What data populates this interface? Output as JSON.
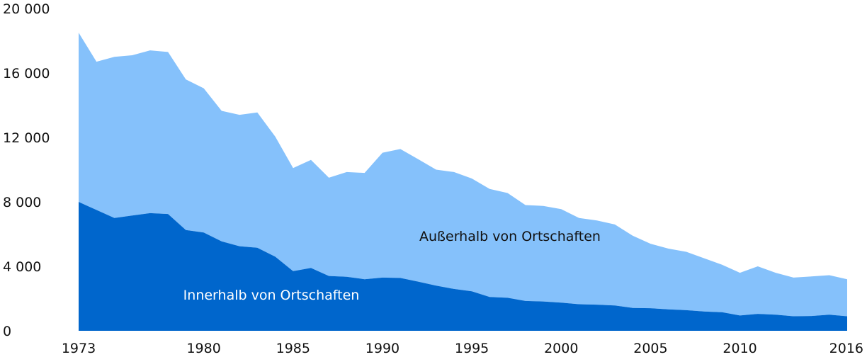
{
  "chart_data": {
    "type": "area",
    "stacked": true,
    "title": "",
    "xlabel": "",
    "ylabel": "",
    "xlim": [
      1973,
      2016
    ],
    "ylim": [
      0,
      20000
    ],
    "grid": false,
    "legend": "none",
    "y_ticks": [
      {
        "value": 0,
        "label": "0"
      },
      {
        "value": 4000,
        "label": "4 000"
      },
      {
        "value": 8000,
        "label": "8 000"
      },
      {
        "value": 12000,
        "label": "12 000"
      },
      {
        "value": 16000,
        "label": "16 000"
      },
      {
        "value": 20000,
        "label": "20 000"
      }
    ],
    "x_ticks": [
      {
        "value": 1973,
        "label": "1973"
      },
      {
        "value": 1980,
        "label": "1980"
      },
      {
        "value": 1985,
        "label": "1985"
      },
      {
        "value": 1990,
        "label": "1990"
      },
      {
        "value": 1995,
        "label": "1995"
      },
      {
        "value": 2000,
        "label": "2000"
      },
      {
        "value": 2005,
        "label": "2005"
      },
      {
        "value": 2010,
        "label": "2010"
      },
      {
        "value": 2016,
        "label": "2016"
      }
    ],
    "x": [
      1973,
      1974,
      1975,
      1976,
      1977,
      1978,
      1979,
      1980,
      1981,
      1982,
      1983,
      1984,
      1985,
      1986,
      1987,
      1988,
      1989,
      1990,
      1991,
      1992,
      1993,
      1994,
      1995,
      1996,
      1997,
      1998,
      1999,
      2000,
      2001,
      2002,
      2003,
      2004,
      2005,
      2006,
      2007,
      2008,
      2009,
      2010,
      2011,
      2012,
      2013,
      2014,
      2015,
      2016
    ],
    "series": [
      {
        "name": "Innerhalb von Ortschaften",
        "color": "#0066cc",
        "values": [
          8000,
          7500,
          7000,
          7150,
          7300,
          7250,
          6250,
          6100,
          5550,
          5250,
          5150,
          4600,
          3700,
          3900,
          3400,
          3350,
          3200,
          3300,
          3280,
          3050,
          2800,
          2600,
          2450,
          2100,
          2050,
          1850,
          1820,
          1750,
          1650,
          1620,
          1570,
          1420,
          1400,
          1330,
          1280,
          1200,
          1150,
          950,
          1050,
          1000,
          900,
          920,
          1000,
          900
        ]
      },
      {
        "name": "Außerhalb von Ortschaften",
        "color": "#85c1fb",
        "values": [
          10500,
          9200,
          10000,
          9950,
          10100,
          10050,
          9350,
          8950,
          8100,
          8150,
          8400,
          7450,
          6400,
          6700,
          6100,
          6500,
          6600,
          7750,
          8000,
          7600,
          7200,
          7250,
          7000,
          6700,
          6500,
          5950,
          5930,
          5800,
          5350,
          5230,
          5030,
          4480,
          4000,
          3770,
          3620,
          3300,
          2950,
          2650,
          2950,
          2600,
          2400,
          2450,
          2450,
          2300
        ]
      }
    ]
  }
}
